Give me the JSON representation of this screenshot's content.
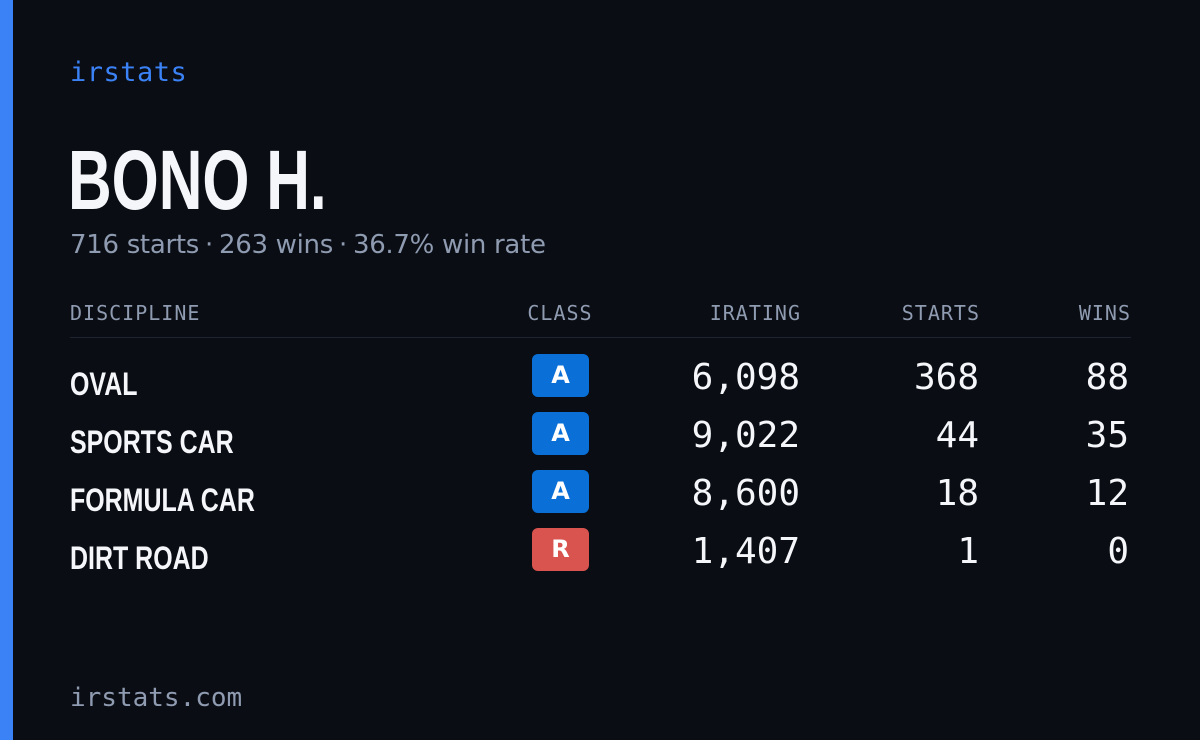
{
  "brand": "irstats",
  "driver": {
    "name": "BONO H.",
    "starts_text": "716 starts",
    "wins_text": "263 wins",
    "winrate_text": "36.7% win rate",
    "separator": "·"
  },
  "columns": {
    "discipline": "DISCIPLINE",
    "class": "CLASS",
    "irating": "IRATING",
    "starts": "STARTS",
    "wins": "WINS"
  },
  "rows": [
    {
      "discipline": "OVAL",
      "class": "A",
      "class_color": "#0a6fd6",
      "irating": "6,098",
      "starts": "368",
      "wins": "88"
    },
    {
      "discipline": "SPORTS CAR",
      "class": "A",
      "class_color": "#0a6fd6",
      "irating": "9,022",
      "starts": "44",
      "wins": "35"
    },
    {
      "discipline": "FORMULA CAR",
      "class": "A",
      "class_color": "#0a6fd6",
      "irating": "8,600",
      "starts": "18",
      "wins": "12"
    },
    {
      "discipline": "DIRT ROAD",
      "class": "R",
      "class_color": "#d9534f",
      "irating": "1,407",
      "starts": "1",
      "wins": "0"
    }
  ],
  "footer": "irstats.com",
  "colors": {
    "background": "#0a0d14",
    "accent": "#3b82f6",
    "text_primary": "#f4f6fa",
    "text_muted": "#8f9bb0"
  }
}
